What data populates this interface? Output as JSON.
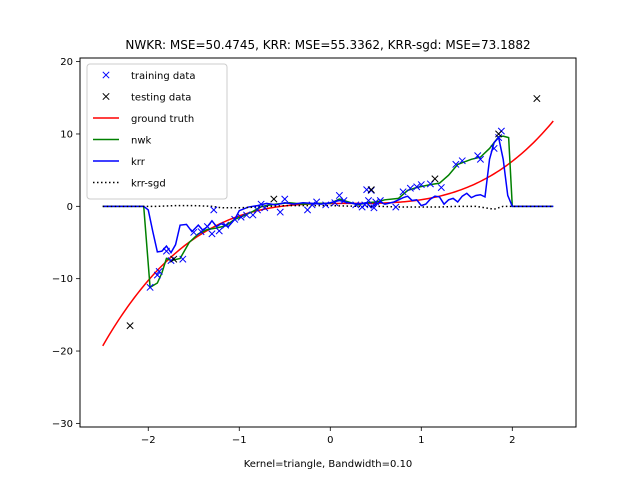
{
  "chart_data": {
    "type": "line",
    "title": "NWKR: MSE=50.4745, KRR: MSE=55.3362, KRR-sgd: MSE=73.1882",
    "xlabel": "Kernel=triangle, Bandwidth=0.10",
    "ylabel": "",
    "xlim": [
      -2.75,
      2.7
    ],
    "ylim": [
      -30.5,
      20.5
    ],
    "xticks": [
      -2,
      -1,
      0,
      1,
      2
    ],
    "yticks": [
      -30,
      -20,
      -10,
      0,
      10,
      20
    ],
    "xtick_labels": [
      "−2",
      "−1",
      "0",
      "1",
      "2"
    ],
    "ytick_labels": [
      "−30",
      "−20",
      "−10",
      "0",
      "10",
      "20"
    ],
    "grid": false,
    "legend_position": "top-left",
    "legend": [
      {
        "label": "training data",
        "marker": "x",
        "color": "#0000ff"
      },
      {
        "label": "testing data",
        "marker": "x",
        "color": "#000000"
      },
      {
        "label": "ground truth",
        "marker": "line",
        "color": "#ff0000"
      },
      {
        "label": "nwk",
        "marker": "line",
        "color": "#008000"
      },
      {
        "label": "krr",
        "marker": "line",
        "color": "#0000ff"
      },
      {
        "label": "krr-sgd",
        "marker": "dotted",
        "color": "#000000"
      }
    ],
    "series": [
      {
        "name": "training data",
        "kind": "scatter",
        "color": "#0000ff",
        "points": [
          [
            -1.98,
            -11.2
          ],
          [
            -1.9,
            -9.5
          ],
          [
            -1.88,
            -9.0
          ],
          [
            -1.8,
            -6.2
          ],
          [
            -1.75,
            -7.5
          ],
          [
            -1.62,
            -7.3
          ],
          [
            -1.5,
            -3.6
          ],
          [
            -1.42,
            -3.5
          ],
          [
            -1.35,
            -2.8
          ],
          [
            -1.3,
            -3.8
          ],
          [
            -1.28,
            -0.5
          ],
          [
            -1.22,
            -3.4
          ],
          [
            -1.15,
            -2.6
          ],
          [
            -1.05,
            -1.8
          ],
          [
            -0.98,
            -1.5
          ],
          [
            -0.92,
            -1.2
          ],
          [
            -0.85,
            -1.2
          ],
          [
            -0.8,
            -0.5
          ],
          [
            -0.76,
            0.3
          ],
          [
            -0.72,
            -0.2
          ],
          [
            -0.55,
            -0.8
          ],
          [
            -0.5,
            1.0
          ],
          [
            -0.25,
            -0.5
          ],
          [
            -0.2,
            0.2
          ],
          [
            -0.15,
            0.6
          ],
          [
            -0.05,
            0.2
          ],
          [
            0.05,
            0.5
          ],
          [
            0.1,
            1.5
          ],
          [
            0.15,
            0.8
          ],
          [
            0.28,
            0.2
          ],
          [
            0.35,
            -0.1
          ],
          [
            0.38,
            0.2
          ],
          [
            0.4,
            2.3
          ],
          [
            0.42,
            0.8
          ],
          [
            0.45,
            2.2
          ],
          [
            0.48,
            -0.2
          ],
          [
            0.5,
            0.6
          ],
          [
            0.55,
            0.8
          ],
          [
            0.72,
            -0.1
          ],
          [
            0.8,
            2.0
          ],
          [
            0.88,
            2.5
          ],
          [
            0.95,
            2.7
          ],
          [
            1.0,
            3.0
          ],
          [
            1.1,
            3.1
          ],
          [
            1.22,
            2.6
          ],
          [
            1.38,
            5.8
          ],
          [
            1.45,
            6.3
          ],
          [
            1.62,
            7.0
          ],
          [
            1.65,
            6.5
          ],
          [
            1.8,
            8.0
          ],
          [
            1.85,
            9.5
          ],
          [
            1.88,
            10.4
          ]
        ]
      },
      {
        "name": "testing data",
        "kind": "scatter",
        "color": "#000000",
        "points": [
          [
            -2.2,
            -16.5
          ],
          [
            -1.72,
            -7.3
          ],
          [
            -0.62,
            1.0
          ],
          [
            0.45,
            2.3
          ],
          [
            1.15,
            3.8
          ],
          [
            1.85,
            10.0
          ],
          [
            2.27,
            14.9
          ]
        ]
      },
      {
        "name": "ground truth",
        "kind": "function",
        "color": "#ff0000",
        "function": "(x-0.2)^3+0.4",
        "domain": [
          -2.5,
          2.45
        ]
      },
      {
        "name": "nwk",
        "kind": "line",
        "color": "#008000",
        "points": [
          [
            -2.5,
            0
          ],
          [
            -2.05,
            0
          ],
          [
            -1.98,
            -11.2
          ],
          [
            -1.9,
            -10.6
          ],
          [
            -1.85,
            -9.2
          ],
          [
            -1.8,
            -7.2
          ],
          [
            -1.75,
            -7.5
          ],
          [
            -1.65,
            -7.2
          ],
          [
            -1.55,
            -5.0
          ],
          [
            -1.45,
            -3.8
          ],
          [
            -1.35,
            -3.2
          ],
          [
            -1.25,
            -3.0
          ],
          [
            -1.15,
            -2.7
          ],
          [
            -1.05,
            -1.8
          ],
          [
            -0.95,
            -1.3
          ],
          [
            -0.85,
            -0.7
          ],
          [
            -0.75,
            0.0
          ],
          [
            -0.6,
            0.3
          ],
          [
            -0.45,
            0.5
          ],
          [
            -0.3,
            0.3
          ],
          [
            -0.15,
            0.4
          ],
          [
            0.0,
            0.4
          ],
          [
            0.1,
            1.0
          ],
          [
            0.2,
            0.6
          ],
          [
            0.3,
            0.2
          ],
          [
            0.4,
            0.5
          ],
          [
            0.5,
            0.6
          ],
          [
            0.6,
            0.9
          ],
          [
            0.75,
            1.1
          ],
          [
            0.85,
            2.2
          ],
          [
            0.95,
            2.6
          ],
          [
            1.1,
            3.0
          ],
          [
            1.2,
            3.2
          ],
          [
            1.3,
            4.3
          ],
          [
            1.4,
            5.8
          ],
          [
            1.55,
            6.5
          ],
          [
            1.65,
            6.8
          ],
          [
            1.75,
            8.0
          ],
          [
            1.85,
            9.6
          ],
          [
            1.9,
            9.7
          ],
          [
            1.96,
            9.5
          ],
          [
            2.0,
            0
          ],
          [
            2.45,
            0
          ]
        ]
      },
      {
        "name": "krr",
        "kind": "line",
        "color": "#0000ff",
        "points": [
          [
            -2.5,
            0
          ],
          [
            -2.05,
            0
          ],
          [
            -2.0,
            -0.5
          ],
          [
            -1.95,
            -3.5
          ],
          [
            -1.9,
            -6.3
          ],
          [
            -1.85,
            -6.2
          ],
          [
            -1.8,
            -5.5
          ],
          [
            -1.75,
            -6.4
          ],
          [
            -1.7,
            -5.3
          ],
          [
            -1.65,
            -2.6
          ],
          [
            -1.58,
            -2.5
          ],
          [
            -1.52,
            -3.5
          ],
          [
            -1.45,
            -2.6
          ],
          [
            -1.4,
            -3.3
          ],
          [
            -1.35,
            -2.8
          ],
          [
            -1.3,
            -2.0
          ],
          [
            -1.25,
            -2.8
          ],
          [
            -1.2,
            -2.4
          ],
          [
            -1.12,
            -2.8
          ],
          [
            -1.05,
            -1.8
          ],
          [
            -1.0,
            -0.6
          ],
          [
            -0.9,
            -0.1
          ],
          [
            -0.8,
            0.1
          ],
          [
            -0.7,
            0.4
          ],
          [
            -0.6,
            0.2
          ],
          [
            -0.5,
            0.5
          ],
          [
            -0.4,
            0.3
          ],
          [
            -0.3,
            0.5
          ],
          [
            -0.2,
            0.4
          ],
          [
            -0.1,
            0.3
          ],
          [
            0.0,
            0.5
          ],
          [
            0.1,
            0.8
          ],
          [
            0.2,
            0.5
          ],
          [
            0.3,
            0.3
          ],
          [
            0.4,
            0.5
          ],
          [
            0.45,
            -0.2
          ],
          [
            0.5,
            0.3
          ],
          [
            0.55,
            0.6
          ],
          [
            0.6,
            0.3
          ],
          [
            0.7,
            0.6
          ],
          [
            0.8,
            1.2
          ],
          [
            0.85,
            1.4
          ],
          [
            0.9,
            0.8
          ],
          [
            0.95,
            0.9
          ],
          [
            1.0,
            0.1
          ],
          [
            1.05,
            0.3
          ],
          [
            1.1,
            1.0
          ],
          [
            1.15,
            1.4
          ],
          [
            1.2,
            1.3
          ],
          [
            1.25,
            0.3
          ],
          [
            1.3,
            0.9
          ],
          [
            1.35,
            1.1
          ],
          [
            1.4,
            0.6
          ],
          [
            1.45,
            1.4
          ],
          [
            1.5,
            1.8
          ],
          [
            1.55,
            1.2
          ],
          [
            1.6,
            1.5
          ],
          [
            1.65,
            1.6
          ],
          [
            1.7,
            1.3
          ],
          [
            1.75,
            6.5
          ],
          [
            1.8,
            8.8
          ],
          [
            1.85,
            9.5
          ],
          [
            1.9,
            6.5
          ],
          [
            1.95,
            1.5
          ],
          [
            2.0,
            0
          ],
          [
            2.45,
            0
          ]
        ]
      },
      {
        "name": "krr-sgd",
        "kind": "dotted",
        "color": "#000000",
        "points": [
          [
            -2.5,
            0
          ],
          [
            -1.9,
            0
          ],
          [
            -1.7,
            0.1
          ],
          [
            -1.5,
            0.1
          ],
          [
            -1.3,
            0.0
          ],
          [
            -1.2,
            -0.2
          ],
          [
            -1.0,
            -0.2
          ],
          [
            -0.8,
            -0.1
          ],
          [
            -0.5,
            0.1
          ],
          [
            0.0,
            0.1
          ],
          [
            0.3,
            0.0
          ],
          [
            0.5,
            0.0
          ],
          [
            0.8,
            -0.1
          ],
          [
            1.0,
            -0.1
          ],
          [
            1.2,
            -0.1
          ],
          [
            1.4,
            0.0
          ],
          [
            1.6,
            0.0
          ],
          [
            1.7,
            -0.2
          ],
          [
            1.8,
            -0.4
          ],
          [
            1.9,
            0.0
          ],
          [
            2.45,
            0
          ]
        ]
      }
    ]
  }
}
